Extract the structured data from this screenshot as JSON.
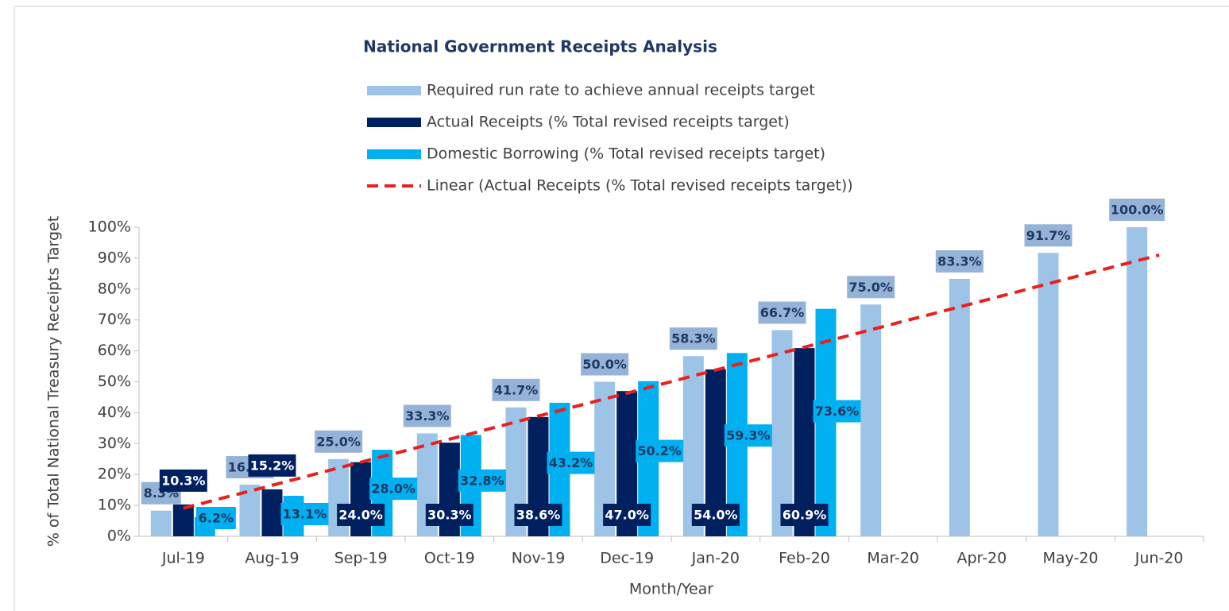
{
  "chart_data": {
    "type": "bar",
    "title": "National Government Receipts Analysis",
    "xlabel": "Month/Year",
    "ylabel": "% of Total National Treasury Receipts Target",
    "categories": [
      "Jul-19",
      "Aug-19",
      "Sep-19",
      "Oct-19",
      "Nov-19",
      "Dec-19",
      "Jan-20",
      "Feb-20",
      "Mar-20",
      "Apr-20",
      "May-20",
      "Jun-20"
    ],
    "series": [
      {
        "name": "Required run rate to achieve annual receipts target",
        "color": "#9dc3e6",
        "values": [
          8.3,
          16.7,
          25.0,
          33.3,
          41.7,
          50.0,
          58.3,
          66.7,
          75.0,
          83.3,
          91.7,
          100.0
        ],
        "value_labels": [
          "8.3%",
          "16.7%",
          "25.0%",
          "33.3%",
          "41.7%",
          "50.0%",
          "58.3%",
          "66.7%",
          "75.0%",
          "83.3%",
          "91.7%",
          "100.0%"
        ]
      },
      {
        "name": "Actual Receipts (% Total revised receipts target)",
        "color": "#002060",
        "values": [
          10.3,
          15.2,
          24.0,
          30.3,
          38.6,
          47.0,
          54.0,
          60.9,
          null,
          null,
          null,
          null
        ],
        "value_labels": [
          "10.3%",
          "15.2%",
          "24.0%",
          "30.3%",
          "38.6%",
          "47.0%",
          "54.0%",
          "60.9%",
          null,
          null,
          null,
          null
        ]
      },
      {
        "name": "Domestic Borrowing (% Total revised receipts target)",
        "color": "#00b0f0",
        "values": [
          6.2,
          13.1,
          28.0,
          32.8,
          43.2,
          50.2,
          59.3,
          73.6,
          null,
          null,
          null,
          null
        ],
        "value_labels": [
          "6.2%",
          "13.1%",
          "28.0%",
          "32.8%",
          "43.2%",
          "50.2%",
          "59.3%",
          "73.6%",
          null,
          null,
          null,
          null
        ]
      },
      {
        "name": "Linear (Actual Receipts (% Total revised receipts target))",
        "color": "#e8201e",
        "style": "dashed",
        "values": [
          9.1,
          16.5,
          24.0,
          31.4,
          38.9,
          46.3,
          53.8,
          61.2,
          68.7,
          76.1,
          83.6,
          91.0
        ]
      }
    ],
    "ylim": [
      0,
      100
    ],
    "yticks": [
      {
        "value": 0,
        "label": "0%"
      },
      {
        "value": 10,
        "label": "10%"
      },
      {
        "value": 20,
        "label": "20%"
      },
      {
        "value": 30,
        "label": "30%"
      },
      {
        "value": 40,
        "label": "40%"
      },
      {
        "value": 50,
        "label": "50%"
      },
      {
        "value": 60,
        "label": "60%"
      },
      {
        "value": 70,
        "label": "70%"
      },
      {
        "value": 80,
        "label": "80%"
      },
      {
        "value": 90,
        "label": "90%"
      },
      {
        "value": 100,
        "label": "100%"
      }
    ]
  }
}
